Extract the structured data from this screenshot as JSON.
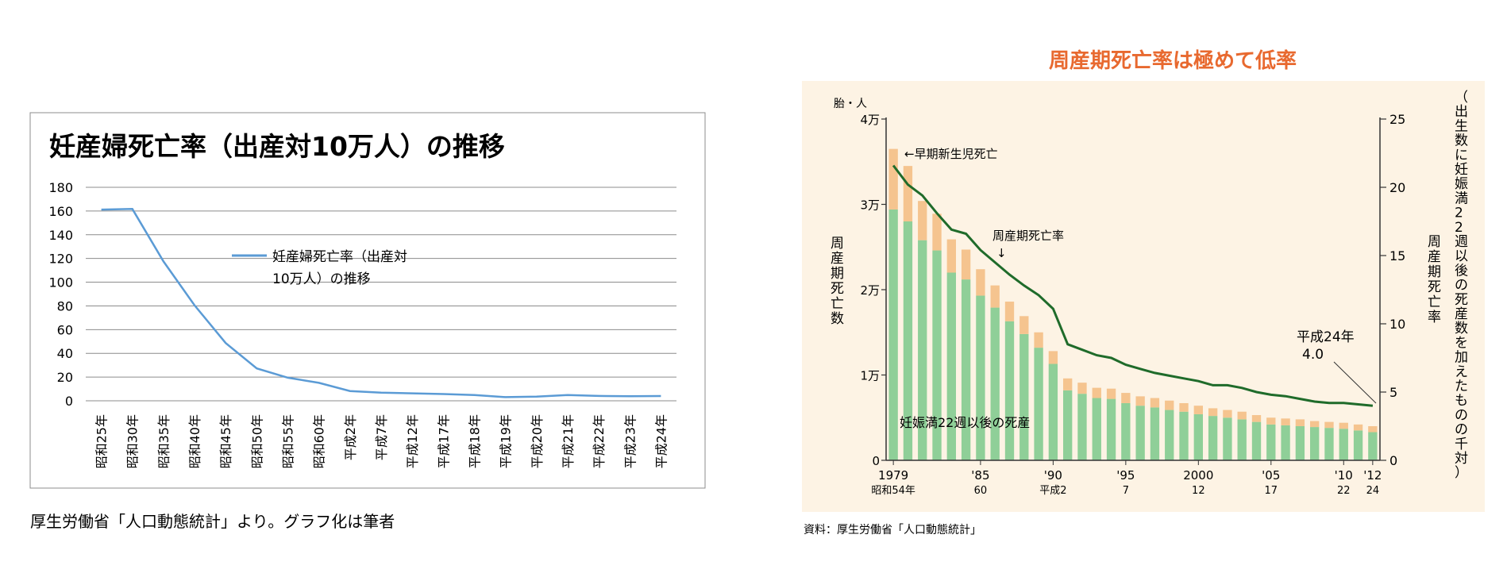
{
  "left_chart": {
    "title": "妊産婦死亡率（出産対10万人）の推移",
    "legend_line1": "妊産婦死亡率（出産対",
    "legend_line2": "10万人）の推移",
    "source": "厚生労働省「人口動態統計」より。グラフ化は筆者",
    "line_color": "#5b9bd5"
  },
  "right_chart": {
    "title": "周産期死亡率は極めて低率",
    "left_axis_unit": "胎・人",
    "left_axis_title": "周産期死亡数",
    "right_axis_title": "周産期死亡率",
    "right_axis_note": "（出生数に妊娠満22週以後の死産数を加えたものの千対）",
    "annotation_early_neonatal": "←早期新生児死亡",
    "annotation_line": "周産期死亡率",
    "annotation_arrow": "↓",
    "annotation_last_line1": "平成24年",
    "annotation_last_line2": "4.0",
    "annotation_stillbirth": "妊娠満22週以後の死産",
    "source": "資料：厚生労働省「人口動態統計」",
    "title_color": "#e8692f",
    "bg_color": "#fdf3e4",
    "stillbirth_color": "#8fcf98",
    "neonatal_color": "#f5c48f",
    "line_color": "#1f6b2a",
    "x_labels": [
      {
        "year_index": 0,
        "top": "1979",
        "bottom": "昭和54年"
      },
      {
        "year_index": 6,
        "top": "'85",
        "bottom": "60"
      },
      {
        "year_index": 11,
        "top": "'90",
        "bottom": "平成2"
      },
      {
        "year_index": 16,
        "top": "'95",
        "bottom": "7"
      },
      {
        "year_index": 21,
        "top": "2000",
        "bottom": "12"
      },
      {
        "year_index": 26,
        "top": "'05",
        "bottom": "17"
      },
      {
        "year_index": 31,
        "top": "'10",
        "bottom": "22"
      },
      {
        "year_index": 33,
        "top": "'12",
        "bottom": "24"
      }
    ]
  },
  "chart_data": [
    {
      "type": "line",
      "title": "妊産婦死亡率（出産対10万人）の推移",
      "categories": [
        "昭和25年",
        "昭和30年",
        "昭和35年",
        "昭和40年",
        "昭和45年",
        "昭和50年",
        "昭和55年",
        "昭和60年",
        "平成2年",
        "平成7年",
        "平成12年",
        "平成17年",
        "平成18年",
        "平成19年",
        "平成20年",
        "平成21年",
        "平成22年",
        "平成23年",
        "平成24年"
      ],
      "series": [
        {
          "name": "妊産婦死亡率（出産対10万人）の推移",
          "values": [
            161.2,
            161.7,
            117.5,
            80.4,
            48.7,
            27.3,
            19.5,
            15.1,
            8.2,
            6.9,
            6.3,
            5.7,
            4.8,
            3.1,
            3.5,
            4.8,
            4.1,
            3.8,
            4.0
          ]
        }
      ],
      "ylim": [
        0,
        180
      ],
      "yticks": [
        0,
        20,
        40,
        60,
        80,
        100,
        120,
        140,
        160,
        180
      ],
      "grid": true,
      "legend": "center"
    },
    {
      "type": "bar",
      "title": "周産期死亡率は極めて低率",
      "x": [
        1979,
        1980,
        1981,
        1982,
        1983,
        1984,
        1985,
        1986,
        1987,
        1988,
        1989,
        1990,
        1991,
        1992,
        1993,
        1994,
        1995,
        1996,
        1997,
        1998,
        1999,
        2000,
        2001,
        2002,
        2003,
        2004,
        2005,
        2006,
        2007,
        2008,
        2009,
        2010,
        2011,
        2012
      ],
      "series": [
        {
          "name": "妊娠満22週以後の死産",
          "axis": "left",
          "values": [
            29400,
            28000,
            25800,
            24600,
            22000,
            21200,
            19300,
            17900,
            16300,
            14800,
            13200,
            11300,
            8200,
            7800,
            7300,
            7200,
            6700,
            6400,
            6200,
            5900,
            5700,
            5400,
            5200,
            5000,
            4800,
            4500,
            4200,
            4100,
            4000,
            3900,
            3800,
            3700,
            3500,
            3300
          ]
        },
        {
          "name": "早期新生児死亡",
          "axis": "left",
          "values": [
            7100,
            6500,
            4600,
            4300,
            3900,
            3500,
            3100,
            2600,
            2300,
            2100,
            1800,
            1500,
            1400,
            1300,
            1200,
            1200,
            1200,
            1100,
            1100,
            1100,
            1000,
            1000,
            900,
            900,
            900,
            800,
            800,
            800,
            800,
            700,
            700,
            700,
            700,
            700
          ]
        },
        {
          "name": "周産期死亡率",
          "type": "line",
          "axis": "right",
          "values": [
            21.6,
            20.2,
            19.4,
            18.1,
            16.9,
            16.6,
            15.4,
            14.5,
            13.6,
            12.8,
            12.1,
            11.1,
            8.5,
            8.1,
            7.7,
            7.5,
            7.0,
            6.7,
            6.4,
            6.2,
            6.0,
            5.8,
            5.5,
            5.5,
            5.3,
            5.0,
            4.8,
            4.7,
            4.5,
            4.3,
            4.2,
            4.2,
            4.1,
            4.0
          ]
        }
      ],
      "left_ylim": [
        0,
        40000
      ],
      "left_yticks_labels": [
        "0",
        "1万",
        "2万",
        "3万",
        "4万"
      ],
      "right_ylim": [
        0,
        25
      ],
      "right_yticks": [
        0,
        5,
        10,
        15,
        20,
        25
      ],
      "stacked": true
    }
  ]
}
